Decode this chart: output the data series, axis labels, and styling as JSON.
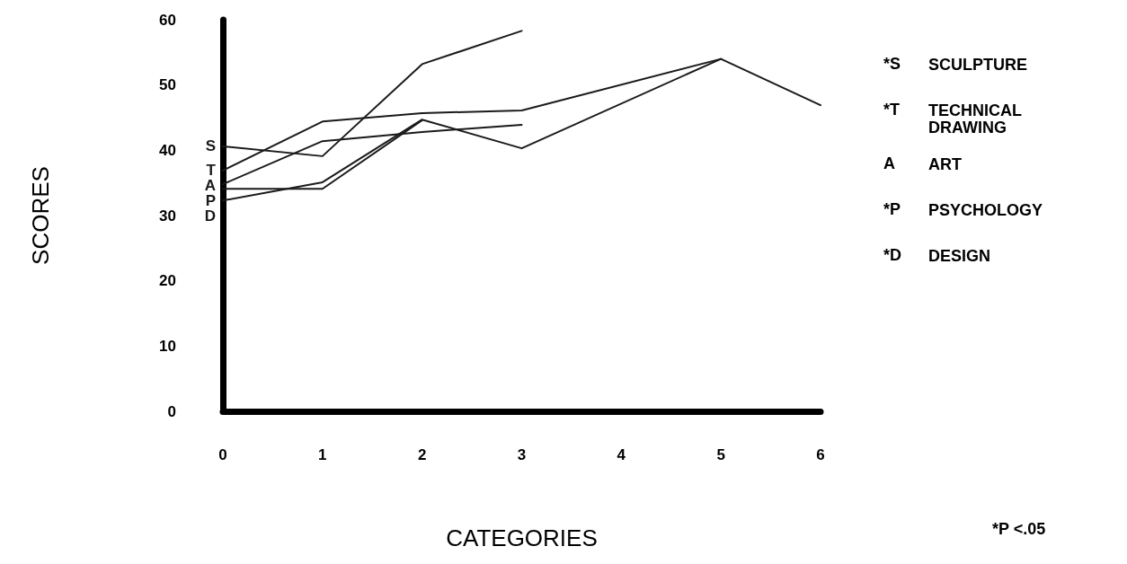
{
  "chart_data": {
    "type": "line",
    "xlabel": "CATEGORIES",
    "ylabel": "SCORES",
    "xlim": [
      0,
      6
    ],
    "xticks": [
      0,
      1,
      2,
      3,
      4,
      5,
      6
    ],
    "ylim": [
      0,
      60
    ],
    "yticks": [
      0,
      10,
      20,
      30,
      40,
      50,
      60
    ],
    "grid": false,
    "marker": "none",
    "line_style": "solid",
    "series": [
      {
        "name": "S",
        "color": "#1a1a1a",
        "x": [
          0,
          1,
          2,
          3
        ],
        "values": [
          40.6,
          39.1,
          53.2,
          58.3
        ]
      },
      {
        "name": "T",
        "color": "#1a1a1a",
        "x": [
          0,
          1,
          2,
          3,
          5
        ],
        "values": [
          36.9,
          44.4,
          45.7,
          46.1,
          54
        ]
      },
      {
        "name": "A",
        "color": "#1a1a1a",
        "x": [
          0,
          1,
          2,
          3
        ],
        "values": [
          34.8,
          41.4,
          42.8,
          43.9
        ]
      },
      {
        "name": "P",
        "color": "#1a1a1a",
        "x": [
          0,
          1,
          2
        ],
        "values": [
          34.1,
          34.1,
          44.6
        ]
      },
      {
        "name": "D",
        "color": "#1a1a1a",
        "x": [
          0,
          1,
          2,
          3,
          5,
          6
        ],
        "values": [
          32.3,
          35.1,
          44.7,
          40.3,
          54,
          46.9
        ]
      }
    ],
    "annotations": [
      "*S",
      "SCULPTURE",
      "*T",
      "TECHNICAL\nDRAWING",
      "A",
      "ART",
      "*P",
      "PSYCHOLOGY",
      "*D",
      "DESIGN",
      "*P <.05"
    ]
  }
}
